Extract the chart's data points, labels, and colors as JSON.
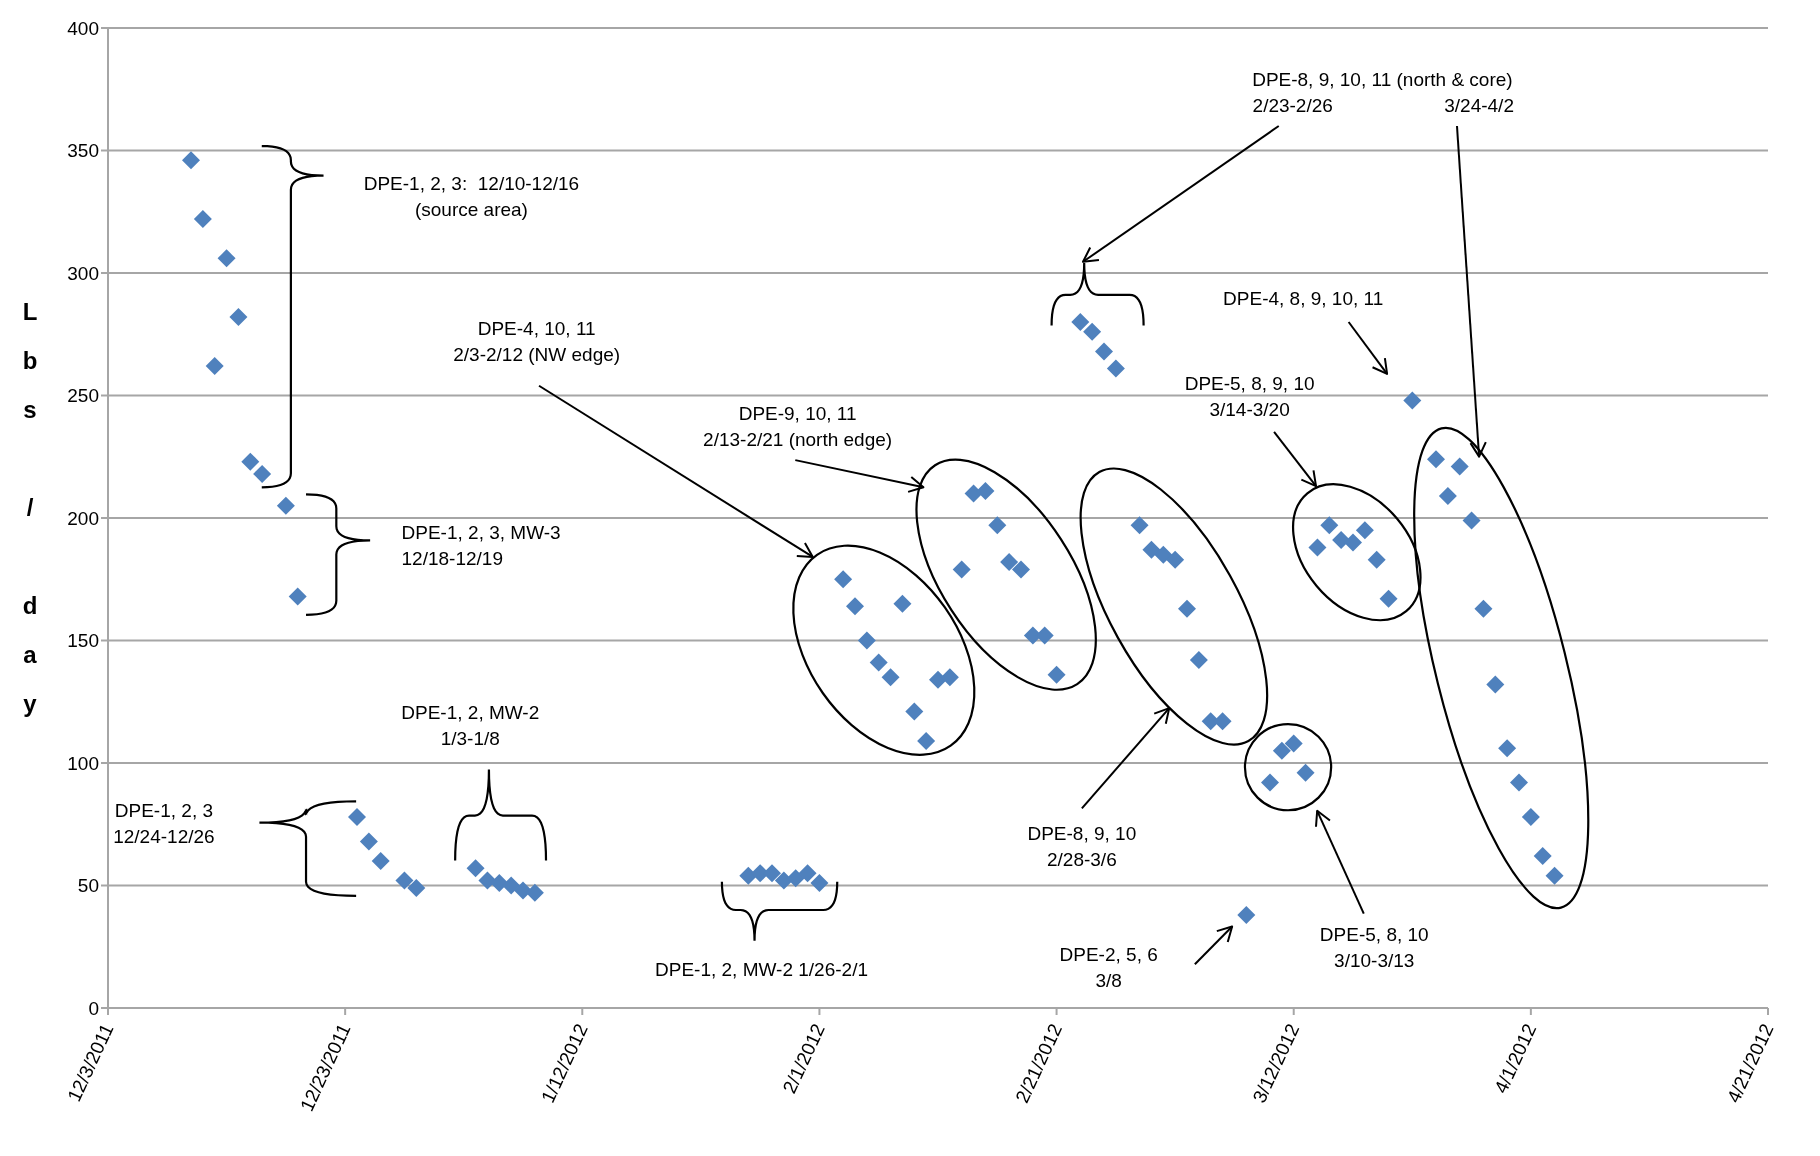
{
  "chart_data": {
    "type": "scatter",
    "ylabel": "Lbs / day",
    "color": "#4f81bd",
    "marker": "diamond",
    "grid": "y",
    "x": [
      "2011-12-10",
      "2011-12-11",
      "2011-12-12",
      "2011-12-13",
      "2011-12-14",
      "2011-12-15",
      "2011-12-16",
      "2011-12-18",
      "2011-12-19",
      "2011-12-24",
      "2011-12-25",
      "2011-12-26",
      "2011-12-28",
      "2011-12-29",
      "2012-01-03",
      "2012-01-04",
      "2012-01-05",
      "2012-01-06",
      "2012-01-07",
      "2012-01-08",
      "2012-01-26",
      "2012-01-27",
      "2012-01-28",
      "2012-01-29",
      "2012-01-30",
      "2012-01-31",
      "2012-02-01",
      "2012-02-03",
      "2012-02-04",
      "2012-02-05",
      "2012-02-06",
      "2012-02-07",
      "2012-02-08",
      "2012-02-09",
      "2012-02-10",
      "2012-02-11",
      "2012-02-12",
      "2012-02-13",
      "2012-02-14",
      "2012-02-15",
      "2012-02-16",
      "2012-02-17",
      "2012-02-18",
      "2012-02-19",
      "2012-02-20",
      "2012-02-21",
      "2012-02-23",
      "2012-02-24",
      "2012-02-25",
      "2012-02-26",
      "2012-02-28",
      "2012-02-29",
      "2012-03-01",
      "2012-03-02",
      "2012-03-03",
      "2012-03-04",
      "2012-03-05",
      "2012-03-06",
      "2012-03-08",
      "2012-03-10",
      "2012-03-11",
      "2012-03-12",
      "2012-03-13",
      "2012-03-14",
      "2012-03-15",
      "2012-03-16",
      "2012-03-17",
      "2012-03-18",
      "2012-03-19",
      "2012-03-20",
      "2012-03-22",
      "2012-03-24",
      "2012-03-25",
      "2012-03-26",
      "2012-03-27",
      "2012-03-28",
      "2012-03-29",
      "2012-03-30",
      "2012-03-31",
      "2012-04-01",
      "2012-04-02",
      "2012-04-03"
    ],
    "values": [
      346,
      322,
      262,
      306,
      282,
      223,
      218,
      205,
      168,
      78,
      68,
      60,
      52,
      49,
      57,
      52,
      51,
      50,
      48,
      47,
      54,
      55,
      55,
      52,
      53,
      55,
      51,
      175,
      164,
      150,
      141,
      135,
      165,
      121,
      109,
      134,
      135,
      179,
      210,
      211,
      197,
      182,
      179,
      152,
      152,
      136,
      280,
      276,
      268,
      261,
      197,
      187,
      185,
      183,
      163,
      142,
      117,
      117,
      38,
      92,
      105,
      108,
      96,
      188,
      197,
      191,
      190,
      195,
      183,
      167,
      248,
      224,
      209,
      221,
      199,
      163,
      132,
      106,
      92,
      78,
      62,
      54
    ],
    "xlim": [
      "2011-12-03",
      "2012-04-21"
    ],
    "xticks": [
      {
        "value": "2011-12-03",
        "label": "12/3/2011"
      },
      {
        "value": "2011-12-23",
        "label": "12/23/2011"
      },
      {
        "value": "2012-01-12",
        "label": "1/12/2012"
      },
      {
        "value": "2012-02-01",
        "label": "2/1/2012"
      },
      {
        "value": "2012-02-21",
        "label": "2/21/2012"
      },
      {
        "value": "2012-03-12",
        "label": "3/12/2012"
      },
      {
        "value": "2012-04-01",
        "label": "4/1/2012"
      },
      {
        "value": "2012-04-21",
        "label": "4/21/2012"
      }
    ],
    "ylim": [
      0,
      400
    ],
    "yticks": [
      0,
      50,
      100,
      150,
      200,
      250,
      300,
      350,
      400
    ],
    "annotations": [
      "DPE-1, 2, 3:  12/10-12/16\n(source area)",
      "DPE-1, 2, 3, MW-3\n12/18-12/19",
      "DPE-1, 2, 3\n12/24-12/26",
      "DPE-1, 2, MW-2\n1/3-1/8",
      "DPE-1, 2, MW-2 1/26-2/1",
      "DPE-4, 10, 11\n2/3-2/12 (NW edge)",
      "DPE-9, 10, 11\n2/13-2/21 (north edge)",
      "DPE-8, 9, 10, 11 (north & core)",
      "2/23-2/26",
      "3/24-4/2",
      "DPE-4, 8, 9, 10, 11",
      "DPE-5, 8, 9, 10\n3/14-3/20",
      "DPE-8, 9, 10\n2/28-3/6",
      "DPE-2, 5, 6\n3/8",
      "DPE-5, 8, 10\n3/10-3/13"
    ]
  }
}
